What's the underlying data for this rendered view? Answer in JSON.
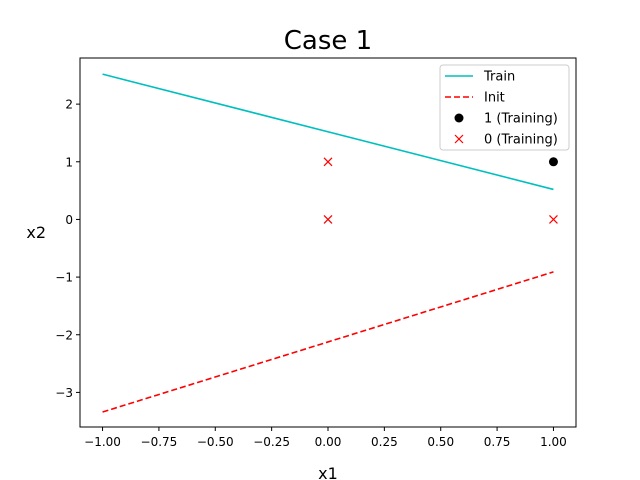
{
  "chart_data": {
    "type": "line",
    "title": "Case 1",
    "xlabel": "x1",
    "ylabel": "x2",
    "xlim": [
      -1.1,
      1.1
    ],
    "ylim": [
      -3.6,
      2.8
    ],
    "xticks": [
      -1.0,
      -0.75,
      -0.5,
      -0.25,
      0.0,
      0.25,
      0.5,
      0.75,
      1.0
    ],
    "xtick_labels": [
      "−1.00",
      "−0.75",
      "−0.50",
      "−0.25",
      "0.00",
      "0.25",
      "0.50",
      "0.75",
      "1.00"
    ],
    "yticks": [
      -3,
      -2,
      -1,
      0,
      1,
      2
    ],
    "ytick_labels": [
      "−3",
      "−2",
      "−1",
      "0",
      "1",
      "2"
    ],
    "grid": false,
    "legend": "top-right",
    "series": [
      {
        "name": "Train",
        "kind": "line",
        "style": "solid",
        "color": "#00bfbf",
        "x": [
          -1.0,
          1.0
        ],
        "y": [
          2.52,
          0.52
        ]
      },
      {
        "name": "Init",
        "kind": "line",
        "style": "dashed",
        "color": "#ff0000",
        "x": [
          -1.0,
          1.0
        ],
        "y": [
          -3.34,
          -0.91
        ]
      },
      {
        "name": "1 (Training)",
        "kind": "scatter",
        "marker": "circle",
        "color": "#000000",
        "x": [
          1.0
        ],
        "y": [
          1.0
        ]
      },
      {
        "name": "0 (Training)",
        "kind": "scatter",
        "marker": "x",
        "color": "#ff0000",
        "x": [
          0.0,
          0.0,
          1.0
        ],
        "y": [
          1.0,
          0.0,
          0.0
        ]
      }
    ]
  }
}
